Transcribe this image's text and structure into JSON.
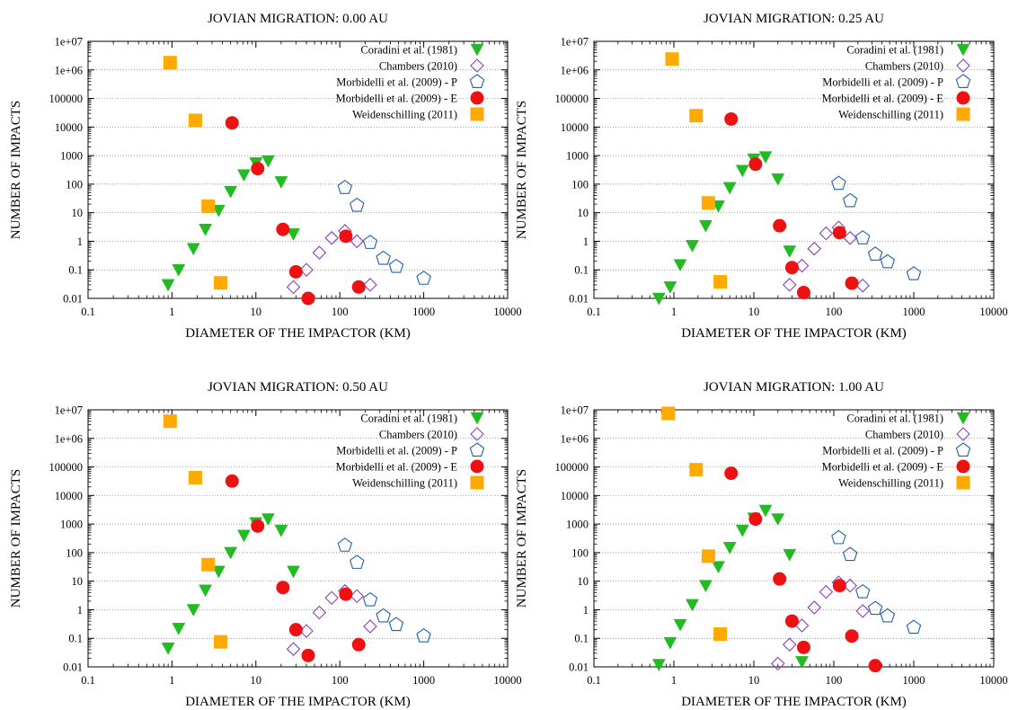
{
  "colors": {
    "coradini": "#22bb22",
    "chambers": "#8a3fb8",
    "morbidelli_p": "#2060a8",
    "morbidelli_e": "#ee1111",
    "weidenschilling": "#ffaa00"
  },
  "chart_data": [
    {
      "type": "scatter",
      "title": "JOVIAN MIGRATION: 0.00 AU",
      "xlabel": "DIAMETER OF THE IMPACTOR (KM)",
      "ylabel": "NUMBER OF IMPACTS",
      "xscale": "log",
      "yscale": "log",
      "xlim": [
        0.1,
        10000
      ],
      "ylim": [
        0.01,
        10000000
      ],
      "x_ticks": [
        "0.1",
        "1",
        "10",
        "100",
        "1000",
        "10000"
      ],
      "y_ticks": [
        "0.01",
        "0.1",
        "1",
        "10",
        "100",
        "1000",
        "10000",
        "100000",
        "1e+06",
        "1e+07"
      ],
      "grid": "horizontal dotted",
      "legend_position": "top-right",
      "series": [
        {
          "name": "Coradini et al. (1981)",
          "marker": "triangle-down",
          "x": [
            0.9,
            1.2,
            1.8,
            2.5,
            3.6,
            5,
            7.2,
            10,
            14,
            20,
            28
          ],
          "y": [
            0.03,
            0.1,
            0.55,
            2.6,
            12,
            55,
            210,
            550,
            650,
            120,
            1.8
          ]
        },
        {
          "name": "Chambers (2010)",
          "marker": "diamond-open",
          "x": [
            28,
            40,
            57,
            80,
            115,
            160,
            230
          ],
          "y": [
            0.025,
            0.1,
            0.4,
            1.3,
            2.3,
            1.0,
            0.03
          ]
        },
        {
          "name": "Morbidelli et al. (2009) - P",
          "marker": "pentagon-open",
          "x": [
            115,
            160,
            230,
            330,
            470,
            1000
          ],
          "y": [
            75,
            18,
            0.9,
            0.25,
            0.13,
            0.05
          ]
        },
        {
          "name": "Morbidelli et al. (2009) - E",
          "marker": "circle",
          "x": [
            5.2,
            10.5,
            21,
            30,
            42,
            118,
            168
          ],
          "y": [
            14000,
            350,
            2.6,
            0.085,
            0.01,
            1.5,
            0.025
          ]
        },
        {
          "name": "Weidenschilling (2011)",
          "marker": "square",
          "x": [
            0.95,
            1.9,
            2.7,
            3.8
          ],
          "y": [
            1800000,
            17000,
            17,
            0.035
          ]
        }
      ]
    },
    {
      "type": "scatter",
      "title": "JOVIAN MIGRATION: 0.25 AU",
      "xlabel": "DIAMETER OF THE IMPACTOR (KM)",
      "ylabel": "NUMBER OF IMPACTS",
      "xscale": "log",
      "yscale": "log",
      "xlim": [
        0.1,
        10000
      ],
      "ylim": [
        0.01,
        10000000
      ],
      "x_ticks": [
        "0.1",
        "1",
        "10",
        "100",
        "1000",
        "10000"
      ],
      "y_ticks": [
        "0.01",
        "0.1",
        "1",
        "10",
        "100",
        "1000",
        "10000",
        "100000",
        "1e+06",
        "1e+07"
      ],
      "grid": "horizontal dotted",
      "legend_position": "top-right",
      "series": [
        {
          "name": "Coradini et al. (1981)",
          "marker": "triangle-down",
          "x": [
            0.65,
            0.9,
            1.2,
            1.7,
            2.5,
            3.6,
            5,
            7.2,
            10,
            14,
            20,
            28
          ],
          "y": [
            0.01,
            0.025,
            0.15,
            0.7,
            3.5,
            17,
            75,
            300,
            750,
            900,
            150,
            0.45
          ]
        },
        {
          "name": "Chambers (2010)",
          "marker": "diamond-open",
          "x": [
            28,
            40,
            57,
            80,
            115,
            160,
            230
          ],
          "y": [
            0.03,
            0.14,
            0.55,
            1.9,
            3.0,
            1.3,
            0.028
          ]
        },
        {
          "name": "Morbidelli et al. (2009) - P",
          "marker": "pentagon-open",
          "x": [
            115,
            160,
            230,
            330,
            470,
            1000
          ],
          "y": [
            105,
            26,
            1.3,
            0.35,
            0.19,
            0.072
          ]
        },
        {
          "name": "Morbidelli et al. (2009) - E",
          "marker": "circle",
          "x": [
            5.2,
            10.5,
            21,
            30,
            42,
            118,
            168
          ],
          "y": [
            19000,
            500,
            3.5,
            0.12,
            0.016,
            2.0,
            0.034
          ]
        },
        {
          "name": "Weidenschilling (2011)",
          "marker": "square",
          "x": [
            0.95,
            1.9,
            2.7,
            3.8
          ],
          "y": [
            2400000,
            25000,
            22,
            0.038
          ]
        }
      ]
    },
    {
      "type": "scatter",
      "title": "JOVIAN MIGRATION: 0.50 AU",
      "xlabel": "DIAMETER OF THE IMPACTOR (KM)",
      "ylabel": "NUMBER OF IMPACTS",
      "xscale": "log",
      "yscale": "log",
      "xlim": [
        0.1,
        10000
      ],
      "ylim": [
        0.01,
        10000000
      ],
      "x_ticks": [
        "0.1",
        "1",
        "10",
        "100",
        "1000",
        "10000"
      ],
      "y_ticks": [
        "0.01",
        "0.1",
        "1",
        "10",
        "100",
        "1000",
        "10000",
        "100000",
        "1e+06",
        "1e+07"
      ],
      "grid": "horizontal dotted",
      "legend_position": "top-right",
      "series": [
        {
          "name": "Coradini et al. (1981)",
          "marker": "triangle-down",
          "x": [
            0.9,
            1.2,
            1.8,
            2.5,
            3.6,
            5,
            7.2,
            10,
            14,
            20,
            28
          ],
          "y": [
            0.045,
            0.22,
            1.0,
            4.8,
            22,
            100,
            400,
            1100,
            1500,
            600,
            22
          ]
        },
        {
          "name": "Chambers (2010)",
          "marker": "diamond-open",
          "x": [
            28,
            40,
            57,
            80,
            115,
            160,
            230
          ],
          "y": [
            0.042,
            0.18,
            0.8,
            2.6,
            4.5,
            3.0,
            0.26
          ]
        },
        {
          "name": "Morbidelli et al. (2009) - P",
          "marker": "pentagon-open",
          "x": [
            115,
            160,
            230,
            330,
            470,
            1000
          ],
          "y": [
            180,
            45,
            2.2,
            0.6,
            0.3,
            0.12
          ]
        },
        {
          "name": "Morbidelli et al. (2009) - E",
          "marker": "circle",
          "x": [
            5.2,
            10.5,
            21,
            30,
            42,
            118,
            168
          ],
          "y": [
            32000,
            850,
            6.0,
            0.2,
            0.025,
            3.5,
            0.06
          ]
        },
        {
          "name": "Weidenschilling (2011)",
          "marker": "square",
          "x": [
            0.95,
            1.9,
            2.7,
            3.8
          ],
          "y": [
            4000000,
            42000,
            38,
            0.075
          ]
        }
      ]
    },
    {
      "type": "scatter",
      "title": "JOVIAN MIGRATION: 1.00 AU",
      "xlabel": "DIAMETER OF THE IMPACTOR (KM)",
      "ylabel": "NUMBER OF IMPACTS",
      "xscale": "log",
      "yscale": "log",
      "xlim": [
        0.1,
        10000
      ],
      "ylim": [
        0.01,
        10000000
      ],
      "x_ticks": [
        "0.1",
        "1",
        "10",
        "100",
        "1000",
        "10000"
      ],
      "y_ticks": [
        "0.01",
        "0.1",
        "1",
        "10",
        "100",
        "1000",
        "10000",
        "100000",
        "1e+06",
        "1e+07"
      ],
      "grid": "horizontal dotted",
      "legend_position": "top-right",
      "series": [
        {
          "name": "Coradini et al. (1981)",
          "marker": "triangle-down",
          "x": [
            0.65,
            0.9,
            1.2,
            1.7,
            2.5,
            3.6,
            5,
            7.2,
            10,
            14,
            20,
            28,
            40
          ],
          "y": [
            0.012,
            0.07,
            0.3,
            1.5,
            7,
            32,
            150,
            600,
            1600,
            3000,
            1500,
            85,
            0.015
          ]
        },
        {
          "name": "Chambers (2010)",
          "marker": "diamond-open",
          "x": [
            20,
            28,
            40,
            57,
            80,
            115,
            160,
            230
          ],
          "y": [
            0.013,
            0.06,
            0.28,
            1.2,
            4.2,
            9.0,
            7.0,
            0.9
          ]
        },
        {
          "name": "Morbidelli et al. (2009) - P",
          "marker": "pentagon-open",
          "x": [
            115,
            160,
            230,
            330,
            470,
            1000
          ],
          "y": [
            330,
            85,
            4.2,
            1.1,
            0.6,
            0.24
          ]
        },
        {
          "name": "Morbidelli et al. (2009) - E",
          "marker": "circle",
          "x": [
            5.2,
            10.5,
            21,
            30,
            42,
            118,
            168,
            330
          ],
          "y": [
            60000,
            1500,
            12,
            0.4,
            0.048,
            7.0,
            0.12,
            0.011
          ]
        },
        {
          "name": "Weidenschilling (2011)",
          "marker": "square",
          "x": [
            0.85,
            1.9,
            2.7,
            3.8
          ],
          "y": [
            7500000,
            80000,
            75,
            0.14
          ]
        }
      ]
    }
  ]
}
